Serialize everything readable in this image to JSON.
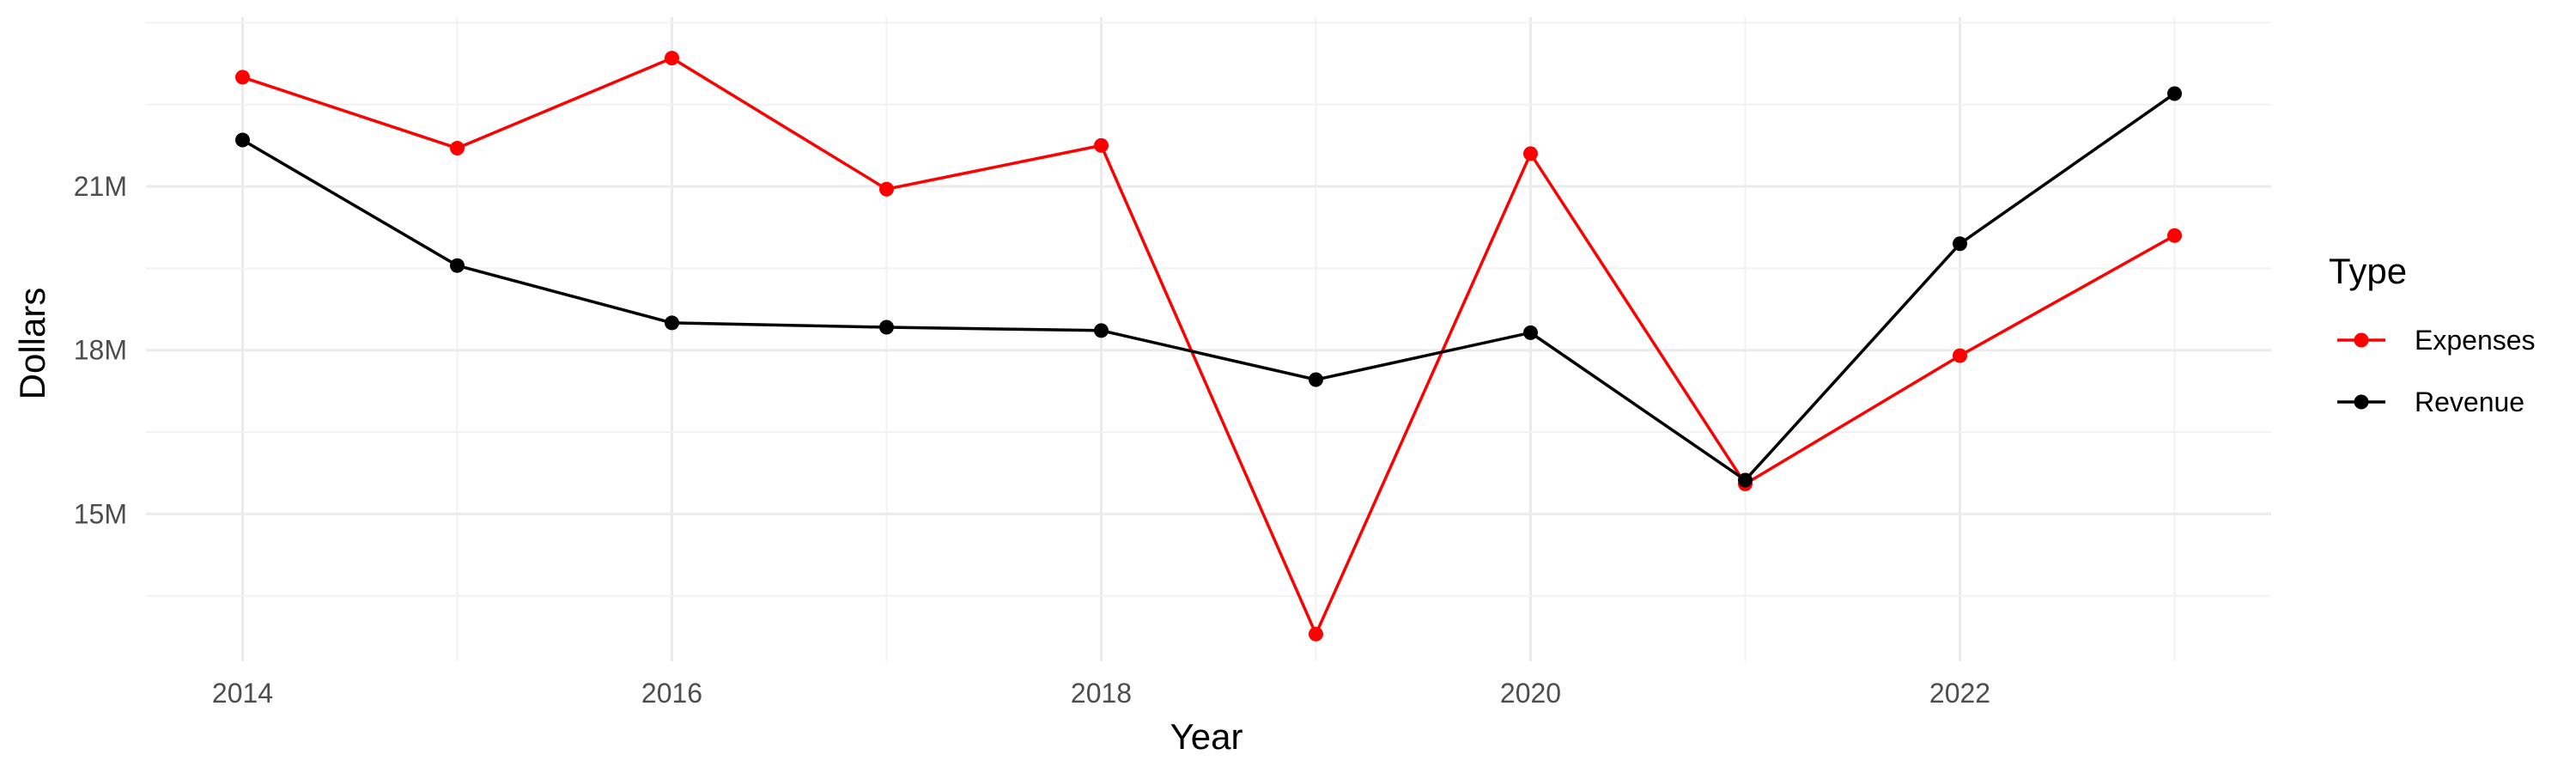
{
  "chart_data": {
    "type": "line",
    "title": "",
    "xlabel": "Year",
    "ylabel": "Dollars",
    "x": [
      2014,
      2015,
      2016,
      2017,
      2018,
      2019,
      2020,
      2021,
      2022,
      2023
    ],
    "x_ticks": [
      "2014",
      "2016",
      "2018",
      "2020",
      "2022"
    ],
    "x_tick_values": [
      2014,
      2016,
      2018,
      2020,
      2022
    ],
    "y_ticks": [
      "15M",
      "18M",
      "21M"
    ],
    "y_tick_values": [
      15000000,
      18000000,
      21000000
    ],
    "xlim": [
      2013.55,
      2023.45
    ],
    "ylim": [
      12300000,
      24100000
    ],
    "grid": true,
    "legend": {
      "title": "Type",
      "position": "right"
    },
    "series": [
      {
        "name": "Expenses",
        "color": "#ff0000",
        "values": [
          23000000,
          21700000,
          23350000,
          20950000,
          21750000,
          12800000,
          21600000,
          15550000,
          17900000,
          20100000
        ]
      },
      {
        "name": "Revenue",
        "color": "#000000",
        "values": [
          21850000,
          19550000,
          18500000,
          18420000,
          18360000,
          17460000,
          18320000,
          15620000,
          19950000,
          22700000
        ]
      }
    ]
  }
}
